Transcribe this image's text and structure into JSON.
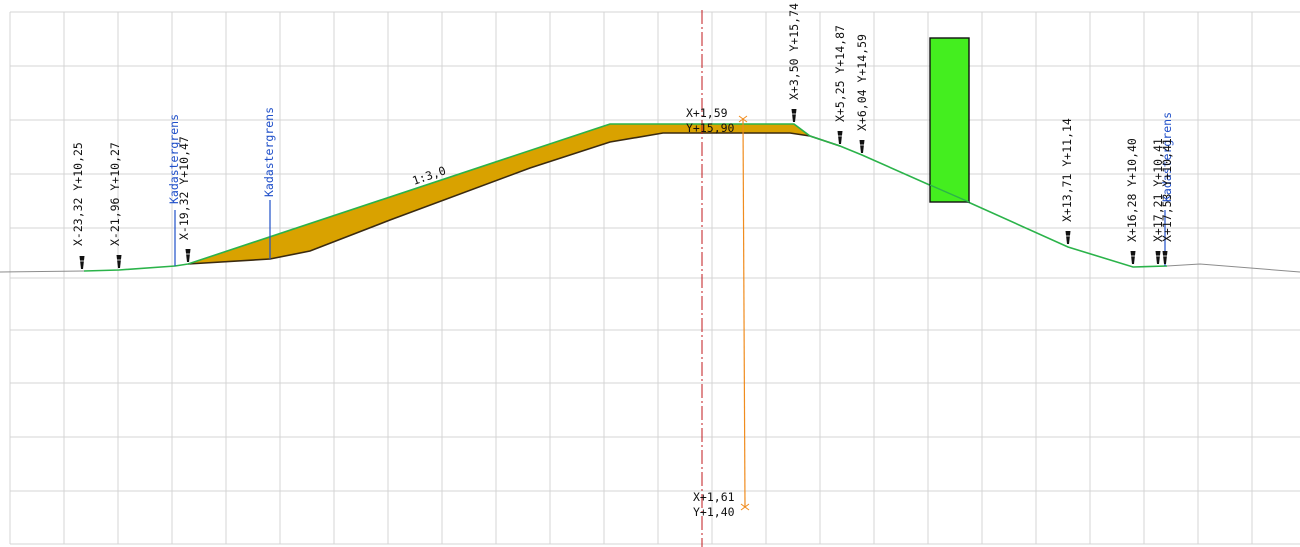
{
  "colors": {
    "grid": "#d4d4d4",
    "terrain": "#2bb34a",
    "terrain_ext": "#8c8c8c",
    "fill_area": "#d9a200",
    "sub_line": "#3a2a10",
    "axis": "#c0181d",
    "measure": "#f08c1e",
    "structure": "#44ee1f",
    "text": "#111111",
    "boundary": "#1f4fc9"
  },
  "point_labels": [
    "X-23,32  Y+10,25",
    "X-21,96  Y+10,27",
    "X-19,32  Y+10,47",
    "X+3,50  Y+15,74",
    "X+5,25  Y+14,87",
    "X+6,04  Y+14,59",
    "X+13,71  Y+11,14",
    "X+16,28  Y+10,40",
    "X+17,21  Y+10,41",
    "X+17,53  Y+10,41"
  ],
  "boundary_labels": [
    "Kadastergrens",
    "Kadastergrens",
    "Kadastergrens"
  ],
  "slope_label": "1:3,0",
  "measure_top": {
    "x": "X+1,59",
    "y": "Y+15,90"
  },
  "measure_bottom": {
    "x": "X+1,61",
    "y": "Y+1,40"
  }
}
